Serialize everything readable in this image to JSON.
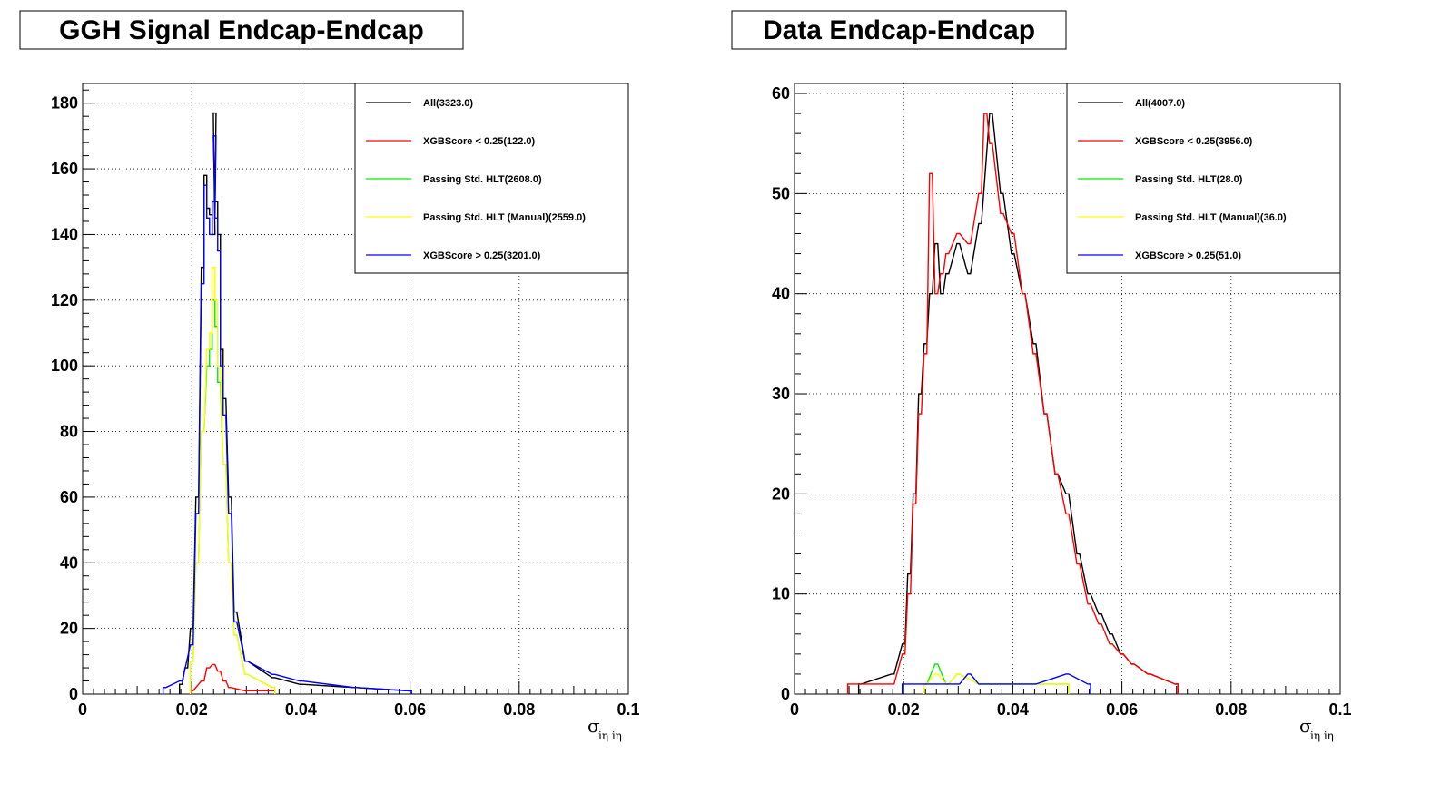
{
  "chart_data": [
    {
      "type": "histogram",
      "title": "GGH Signal Endcap-Endcap",
      "xlabel": "σ_{iη iη}",
      "xlabel_main": "σ",
      "xlabel_sub": "iη iη",
      "ylabel": "",
      "xlim": [
        0,
        0.1
      ],
      "ylim": [
        0,
        186
      ],
      "yticks": [
        0,
        20,
        40,
        60,
        80,
        100,
        120,
        140,
        160,
        180
      ],
      "xticks": [
        0,
        0.02,
        0.04,
        0.06,
        0.08,
        0.1
      ],
      "xtick_labels": [
        "0",
        "0.02",
        "0.04",
        "0.06",
        "0.08",
        "0.1"
      ],
      "grid": true,
      "legend_position": "top-right",
      "colors": {
        "all": "#000000",
        "xgb_low": "#ff0000",
        "std_hlt": "#00ee00",
        "manual_hlt": "#ffff00",
        "xgb_high": "#0000ff"
      },
      "series": [
        {
          "name": "All(3323.0)",
          "key": "all",
          "approx_peak": {
            "x": 0.0242,
            "y": 177
          },
          "points": [
            [
              0.018,
              3
            ],
            [
              0.019,
              8
            ],
            [
              0.02,
              20
            ],
            [
              0.021,
              60
            ],
            [
              0.022,
              130
            ],
            [
              0.0225,
              158
            ],
            [
              0.023,
              148
            ],
            [
              0.0235,
              146
            ],
            [
              0.024,
              140
            ],
            [
              0.0242,
              177
            ],
            [
              0.0245,
              150
            ],
            [
              0.025,
              140
            ],
            [
              0.0255,
              105
            ],
            [
              0.026,
              90
            ],
            [
              0.027,
              60
            ],
            [
              0.028,
              25
            ],
            [
              0.03,
              10
            ],
            [
              0.035,
              5
            ],
            [
              0.04,
              3
            ],
            [
              0.05,
              2
            ],
            [
              0.06,
              1
            ]
          ]
        },
        {
          "name": "XGBScore < 0.25(122.0)",
          "key": "xgb_low",
          "points": [
            [
              0.02,
              1
            ],
            [
              0.022,
              4
            ],
            [
              0.023,
              8
            ],
            [
              0.024,
              9
            ],
            [
              0.025,
              7
            ],
            [
              0.026,
              4
            ],
            [
              0.027,
              2
            ],
            [
              0.03,
              1
            ],
            [
              0.035,
              1
            ]
          ]
        },
        {
          "name": "Passing Std. HLT(2608.0)",
          "key": "std_hlt",
          "points": [
            [
              0.02,
              10
            ],
            [
              0.021,
              40
            ],
            [
              0.022,
              80
            ],
            [
              0.023,
              100
            ],
            [
              0.0235,
              105
            ],
            [
              0.024,
              120
            ],
            [
              0.0245,
              112
            ],
            [
              0.025,
              95
            ],
            [
              0.026,
              70
            ],
            [
              0.027,
              40
            ],
            [
              0.028,
              18
            ],
            [
              0.03,
              6
            ],
            [
              0.035,
              2
            ]
          ]
        },
        {
          "name": "Passing Std. HLT (Manual)(2559.0)",
          "key": "manual_hlt",
          "points": [
            [
              0.02,
              10
            ],
            [
              0.021,
              40
            ],
            [
              0.022,
              80
            ],
            [
              0.023,
              105
            ],
            [
              0.0235,
              110
            ],
            [
              0.024,
              130
            ],
            [
              0.0245,
              120
            ],
            [
              0.025,
              100
            ],
            [
              0.026,
              70
            ],
            [
              0.027,
              40
            ],
            [
              0.028,
              18
            ],
            [
              0.03,
              6
            ],
            [
              0.035,
              2
            ]
          ]
        },
        {
          "name": "XGBScore > 0.25(3201.0)",
          "key": "xgb_high",
          "points": [
            [
              0.015,
              2
            ],
            [
              0.018,
              4
            ],
            [
              0.02,
              15
            ],
            [
              0.021,
              55
            ],
            [
              0.022,
              125
            ],
            [
              0.0225,
              155
            ],
            [
              0.023,
              145
            ],
            [
              0.0235,
              140
            ],
            [
              0.024,
              150
            ],
            [
              0.0242,
              170
            ],
            [
              0.0245,
              145
            ],
            [
              0.025,
              135
            ],
            [
              0.0255,
              100
            ],
            [
              0.026,
              85
            ],
            [
              0.027,
              55
            ],
            [
              0.028,
              22
            ],
            [
              0.03,
              10
            ],
            [
              0.035,
              6
            ],
            [
              0.04,
              4
            ],
            [
              0.05,
              2
            ],
            [
              0.06,
              1
            ]
          ]
        }
      ]
    },
    {
      "type": "histogram",
      "title": "Data Endcap-Endcap",
      "xlabel": "σ_{iη iη}",
      "xlabel_main": "σ",
      "xlabel_sub": "iη iη",
      "ylabel": "",
      "xlim": [
        0,
        0.1
      ],
      "ylim": [
        0,
        61
      ],
      "yticks": [
        0,
        10,
        20,
        30,
        40,
        50,
        60
      ],
      "xticks": [
        0,
        0.02,
        0.04,
        0.06,
        0.08,
        0.1
      ],
      "xtick_labels": [
        "0",
        "0.02",
        "0.04",
        "0.06",
        "0.08",
        "0.1"
      ],
      "grid": true,
      "legend_position": "top-right",
      "colors": {
        "all": "#000000",
        "xgb_low": "#ff0000",
        "std_hlt": "#00ee00",
        "manual_hlt": "#ffff00",
        "xgb_high": "#0000ff"
      },
      "series": [
        {
          "name": "All(4007.0)",
          "key": "all",
          "points": [
            [
              0.012,
              1
            ],
            [
              0.018,
              2
            ],
            [
              0.02,
              5
            ],
            [
              0.021,
              12
            ],
            [
              0.022,
              20
            ],
            [
              0.023,
              30
            ],
            [
              0.024,
              35
            ],
            [
              0.025,
              40
            ],
            [
              0.026,
              45
            ],
            [
              0.027,
              40
            ],
            [
              0.028,
              42
            ],
            [
              0.03,
              45
            ],
            [
              0.032,
              42
            ],
            [
              0.034,
              47
            ],
            [
              0.036,
              58
            ],
            [
              0.038,
              50
            ],
            [
              0.04,
              44
            ],
            [
              0.042,
              40
            ],
            [
              0.044,
              35
            ],
            [
              0.046,
              28
            ],
            [
              0.048,
              22
            ],
            [
              0.05,
              20
            ],
            [
              0.052,
              14
            ],
            [
              0.054,
              10
            ],
            [
              0.056,
              8
            ],
            [
              0.058,
              6
            ],
            [
              0.06,
              4
            ],
            [
              0.062,
              3
            ],
            [
              0.065,
              2
            ],
            [
              0.07,
              1
            ]
          ]
        },
        {
          "name": "XGBScore < 0.25(3956.0)",
          "key": "xgb_low",
          "points": [
            [
              0.01,
              1
            ],
            [
              0.015,
              1
            ],
            [
              0.018,
              1
            ],
            [
              0.02,
              4
            ],
            [
              0.021,
              10
            ],
            [
              0.022,
              19
            ],
            [
              0.023,
              28
            ],
            [
              0.024,
              34
            ],
            [
              0.025,
              52
            ],
            [
              0.026,
              40
            ],
            [
              0.027,
              42
            ],
            [
              0.028,
              44
            ],
            [
              0.03,
              46
            ],
            [
              0.032,
              45
            ],
            [
              0.034,
              50
            ],
            [
              0.035,
              58
            ],
            [
              0.036,
              55
            ],
            [
              0.038,
              48
            ],
            [
              0.04,
              46
            ],
            [
              0.042,
              40
            ],
            [
              0.044,
              34
            ],
            [
              0.046,
              28
            ],
            [
              0.048,
              22
            ],
            [
              0.05,
              18
            ],
            [
              0.052,
              13
            ],
            [
              0.054,
              9
            ],
            [
              0.056,
              7
            ],
            [
              0.058,
              5
            ],
            [
              0.06,
              4
            ],
            [
              0.062,
              3
            ],
            [
              0.065,
              2
            ],
            [
              0.07,
              1
            ]
          ]
        },
        {
          "name": "Passing Std. HLT(28.0)",
          "key": "std_hlt",
          "points": [
            [
              0.024,
              1
            ],
            [
              0.026,
              3
            ],
            [
              0.028,
              1
            ],
            [
              0.03,
              2
            ],
            [
              0.034,
              1
            ],
            [
              0.04,
              1
            ],
            [
              0.05,
              1
            ]
          ]
        },
        {
          "name": "Passing Std. HLT (Manual)(36.0)",
          "key": "manual_hlt",
          "points": [
            [
              0.024,
              1
            ],
            [
              0.026,
              2
            ],
            [
              0.028,
              1
            ],
            [
              0.03,
              2
            ],
            [
              0.034,
              1
            ],
            [
              0.04,
              1
            ],
            [
              0.05,
              1
            ]
          ]
        },
        {
          "name": "XGBScore > 0.25(51.0)",
          "key": "xgb_high",
          "points": [
            [
              0.02,
              1
            ],
            [
              0.024,
              1
            ],
            [
              0.026,
              1
            ],
            [
              0.03,
              1
            ],
            [
              0.032,
              2
            ],
            [
              0.034,
              1
            ],
            [
              0.036,
              1
            ],
            [
              0.04,
              1
            ],
            [
              0.044,
              1
            ],
            [
              0.05,
              2
            ],
            [
              0.054,
              1
            ]
          ]
        }
      ]
    }
  ]
}
